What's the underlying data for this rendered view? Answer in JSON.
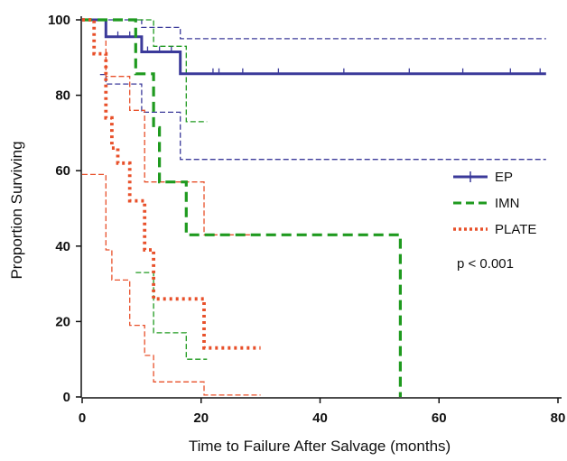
{
  "chart_data": {
    "type": "line",
    "subtype": "kaplan-meier",
    "xlabel": "Time to Failure After Salvage (months)",
    "ylabel": "Proportion Surviving",
    "xlim": [
      0,
      80
    ],
    "ylim": [
      0,
      100
    ],
    "xticks": [
      0,
      20,
      40,
      60,
      80
    ],
    "yticks": [
      0,
      20,
      40,
      60,
      80,
      100
    ],
    "grid": false,
    "legend_position": "right",
    "annotation": "p < 0.001",
    "series": [
      {
        "name": "EP",
        "color": "#3b3a9a",
        "dash": "solid",
        "curve": [
          [
            0,
            100
          ],
          [
            4,
            100
          ],
          [
            4,
            95.5
          ],
          [
            10,
            95.5
          ],
          [
            10,
            91.5
          ],
          [
            16.5,
            91.5
          ],
          [
            16.5,
            85.7
          ],
          [
            78,
            85.7
          ]
        ],
        "censor_x": [
          6,
          8,
          11,
          13,
          15,
          22,
          23,
          27,
          33,
          44,
          55,
          64,
          72,
          77
        ],
        "ci_upper": [
          [
            3,
            100
          ],
          [
            10,
            100
          ],
          [
            10,
            98
          ],
          [
            16.5,
            98
          ],
          [
            16.5,
            95
          ],
          [
            78,
            95
          ]
        ],
        "ci_lower": [
          [
            3,
            85.5
          ],
          [
            4,
            85.5
          ],
          [
            4,
            83
          ],
          [
            10,
            83
          ],
          [
            10,
            75.5
          ],
          [
            16.5,
            75.5
          ],
          [
            16.5,
            63
          ],
          [
            78,
            63
          ]
        ]
      },
      {
        "name": "IMN",
        "color": "#1f9a1f",
        "dash": "long-dash",
        "curve": [
          [
            0,
            100
          ],
          [
            9,
            100
          ],
          [
            9,
            85.7
          ],
          [
            12,
            85.7
          ],
          [
            12,
            71.4
          ],
          [
            13,
            71.4
          ],
          [
            13,
            57
          ],
          [
            17.5,
            57
          ],
          [
            17.5,
            43
          ],
          [
            53.5,
            43
          ],
          [
            53.5,
            0
          ]
        ],
        "ci_upper": [
          [
            8,
            100
          ],
          [
            12,
            100
          ],
          [
            12,
            93
          ],
          [
            17.5,
            93
          ],
          [
            17.5,
            73
          ],
          [
            21,
            73
          ]
        ],
        "ci_lower": [
          [
            9,
            33
          ],
          [
            12,
            33
          ],
          [
            12,
            17
          ],
          [
            17.5,
            17
          ],
          [
            17.5,
            10
          ],
          [
            21,
            10
          ]
        ]
      },
      {
        "name": "PLATE",
        "color": "#e8502a",
        "dash": "dotted",
        "curve": [
          [
            0,
            100
          ],
          [
            2,
            100
          ],
          [
            2,
            91
          ],
          [
            4,
            91
          ],
          [
            4,
            74
          ],
          [
            5,
            74
          ],
          [
            5,
            66
          ],
          [
            6,
            66
          ],
          [
            6,
            62
          ],
          [
            8,
            62
          ],
          [
            8,
            52
          ],
          [
            10.5,
            52
          ],
          [
            10.5,
            39
          ],
          [
            12,
            39
          ],
          [
            12,
            26
          ],
          [
            20.5,
            26
          ],
          [
            20.5,
            13
          ],
          [
            30,
            13
          ]
        ],
        "ci_upper": [
          [
            2,
            100
          ],
          [
            4,
            100
          ],
          [
            4,
            85
          ],
          [
            8,
            85
          ],
          [
            8,
            76
          ],
          [
            10.5,
            76
          ],
          [
            10.5,
            57
          ],
          [
            20.5,
            57
          ],
          [
            20.5,
            43
          ],
          [
            30,
            43
          ]
        ],
        "ci_lower": [
          [
            0,
            59
          ],
          [
            4,
            59
          ],
          [
            4,
            39
          ],
          [
            5,
            39
          ],
          [
            5,
            31
          ],
          [
            8,
            31
          ],
          [
            8,
            19
          ],
          [
            10.5,
            19
          ],
          [
            10.5,
            11
          ],
          [
            12,
            11
          ],
          [
            12,
            4
          ],
          [
            20.5,
            4
          ],
          [
            20.5,
            0.5
          ],
          [
            30,
            0.5
          ]
        ]
      }
    ]
  }
}
